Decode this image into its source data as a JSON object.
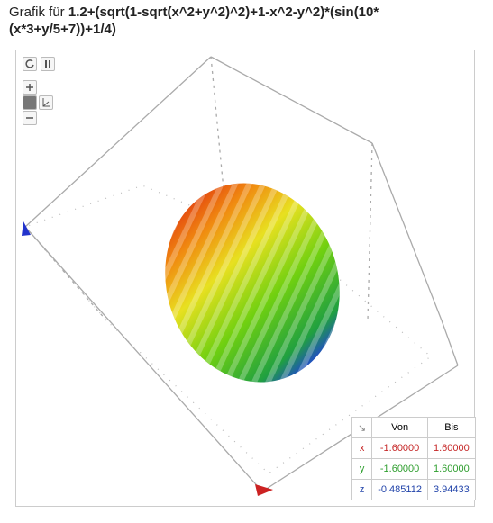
{
  "header": {
    "prefix": "Grafik für",
    "formula": "1.2+(sqrt(1-sqrt(x^2+y^2)^2)+1-x^2-y^2)*(sin(10*(x*3+y/5+7))+1/4)"
  },
  "table": {
    "header": [
      "Von",
      "Bis"
    ],
    "rows": [
      [
        "x",
        "-1.60000",
        "1.60000"
      ],
      [
        "y",
        "-1.60000",
        "1.60000"
      ],
      [
        "z",
        "-0.485112",
        "3.94433"
      ]
    ]
  }
}
